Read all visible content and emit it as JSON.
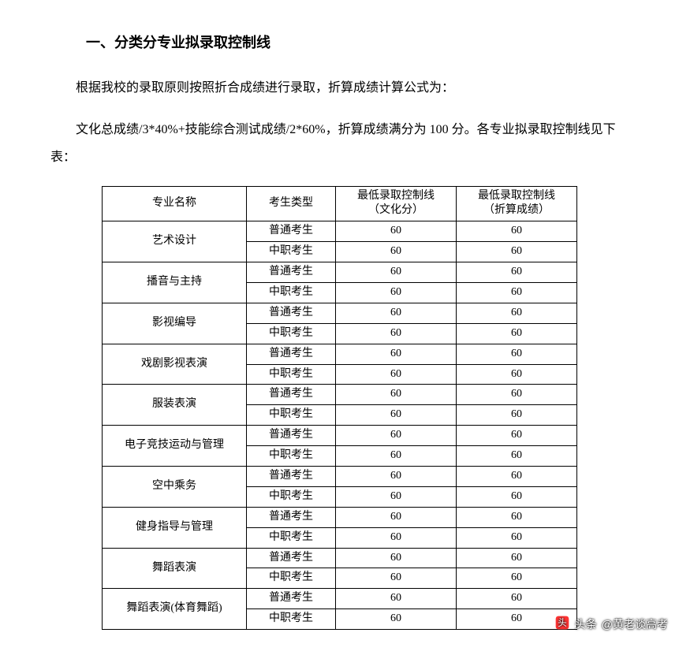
{
  "heading": "一、分类分专业拟录取控制线",
  "para1": "根据我校的录取原则按照折合成绩进行录取，折算成绩计算公式为：",
  "para2": "文化总成绩/3*40%+技能综合测试成绩/2*60%，折算成绩满分为 100 分。各专业拟录取控制线见下表：",
  "table": {
    "headers": {
      "major": "专业名称",
      "type": "考生类型",
      "culture_line1": "最低录取控制线",
      "culture_line2": "（文化分）",
      "convert_line1": "最低录取控制线",
      "convert_line2": "（折算成绩）"
    },
    "student_types": {
      "general": "普通考生",
      "vocational": "中职考生"
    },
    "majors": [
      {
        "name": "艺术设计",
        "rows": [
          {
            "type": "general",
            "culture": 60,
            "convert": 60
          },
          {
            "type": "vocational",
            "culture": 60,
            "convert": 60
          }
        ]
      },
      {
        "name": "播音与主持",
        "rows": [
          {
            "type": "general",
            "culture": 60,
            "convert": 60
          },
          {
            "type": "vocational",
            "culture": 60,
            "convert": 60
          }
        ]
      },
      {
        "name": "影视编导",
        "rows": [
          {
            "type": "general",
            "culture": 60,
            "convert": 60
          },
          {
            "type": "vocational",
            "culture": 60,
            "convert": 60
          }
        ]
      },
      {
        "name": "戏剧影视表演",
        "rows": [
          {
            "type": "general",
            "culture": 60,
            "convert": 60
          },
          {
            "type": "vocational",
            "culture": 60,
            "convert": 60
          }
        ]
      },
      {
        "name": "服装表演",
        "rows": [
          {
            "type": "general",
            "culture": 60,
            "convert": 60
          },
          {
            "type": "vocational",
            "culture": 60,
            "convert": 60
          }
        ]
      },
      {
        "name": "电子竞技运动与管理",
        "rows": [
          {
            "type": "general",
            "culture": 60,
            "convert": 60
          },
          {
            "type": "vocational",
            "culture": 60,
            "convert": 60
          }
        ]
      },
      {
        "name": "空中乘务",
        "rows": [
          {
            "type": "general",
            "culture": 60,
            "convert": 60
          },
          {
            "type": "vocational",
            "culture": 60,
            "convert": 60
          }
        ]
      },
      {
        "name": "健身指导与管理",
        "rows": [
          {
            "type": "general",
            "culture": 60,
            "convert": 60
          },
          {
            "type": "vocational",
            "culture": 60,
            "convert": 60
          }
        ]
      },
      {
        "name": "舞蹈表演",
        "rows": [
          {
            "type": "general",
            "culture": 60,
            "convert": 60
          },
          {
            "type": "vocational",
            "culture": 60,
            "convert": 60
          }
        ]
      },
      {
        "name": "舞蹈表演(体育舞蹈)",
        "rows": [
          {
            "type": "general",
            "culture": 60,
            "convert": 60
          },
          {
            "type": "vocational",
            "culture": 60,
            "convert": 60
          }
        ]
      }
    ]
  },
  "watermark": {
    "prefix": "头条",
    "text": "@黄老谈高考"
  },
  "style": {
    "background_color": "#ffffff",
    "text_color": "#000000",
    "border_color": "#000000",
    "heading_fontsize_pt": 14,
    "body_fontsize_pt": 12,
    "table_fontsize_pt": 10.5,
    "font_family": "SimSun"
  }
}
